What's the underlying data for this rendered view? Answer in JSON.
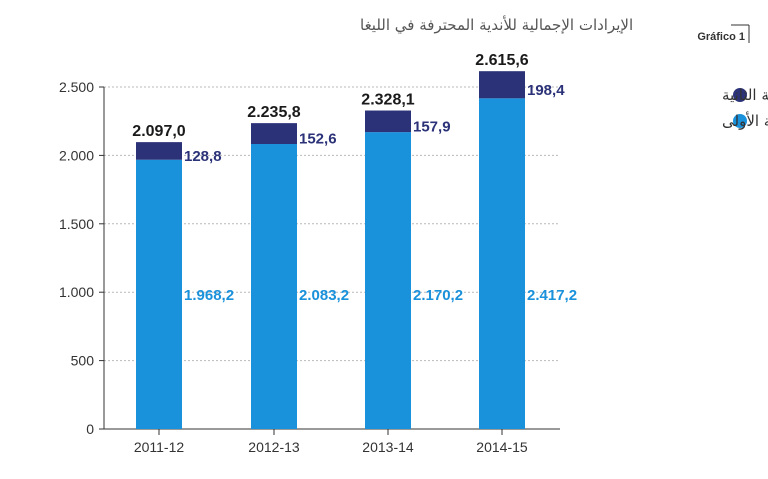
{
  "header": {
    "title": "الإيرادات الإجمالية للأندية المحترفة في الليغا",
    "figure_label": "Gráfico 1"
  },
  "colors": {
    "segunda": "#2b3278",
    "primera": "#1a91db",
    "gridline": "#b9b9b9",
    "axis": "#333333"
  },
  "chart_data": {
    "type": "bar",
    "stacked": true,
    "categories": [
      "2011-12",
      "2012-13",
      "2013-14",
      "2014-15"
    ],
    "series": [
      {
        "name": "الدرجة الأولى",
        "values": [
          1968.2,
          2083.2,
          2170.2,
          2417.2
        ],
        "labels": [
          "1.968,2",
          "2.083,2",
          "2.170,2",
          "2.417,2"
        ]
      },
      {
        "name": "الدرجة الثانية",
        "values": [
          128.8,
          152.6,
          157.9,
          198.4
        ],
        "labels": [
          "128,8",
          "152,6",
          "157,9",
          "198,4"
        ]
      }
    ],
    "totals": [
      2097.0,
      2235.8,
      2328.1,
      2615.6
    ],
    "total_labels": [
      "2.097,0",
      "2.235,8",
      "2.328,1",
      "2.615,6"
    ],
    "ylim": [
      0,
      2500
    ],
    "yticks": [
      0,
      500,
      1000,
      1500,
      2000,
      2500
    ],
    "ytick_labels": [
      "0",
      "500",
      "1.000",
      "1.500",
      "2.000",
      "2.500"
    ],
    "grid": true,
    "legend_position": "top-right"
  }
}
